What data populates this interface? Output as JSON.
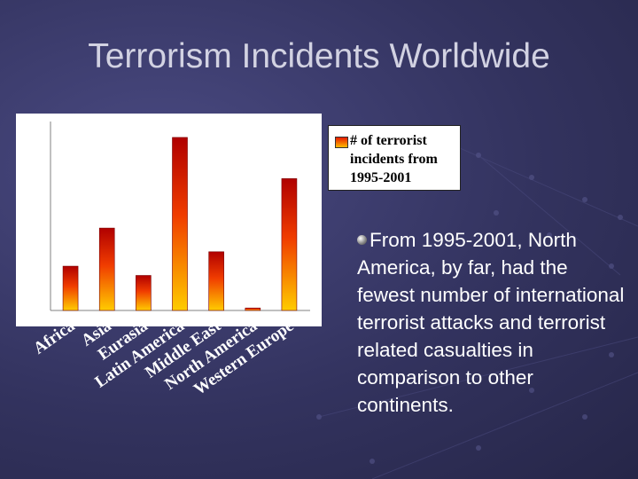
{
  "slide": {
    "title": "Terrorism Incidents Worldwide",
    "bullet_text": "From 1995-2001, North America, by far, had the fewest number of international terrorist attacks and terrorist related casualties in comparison to other continents."
  },
  "chart_data": {
    "type": "bar",
    "title": "",
    "xlabel": "",
    "ylabel": "",
    "ylim": [
      0,
      900
    ],
    "yticks": [
      0,
      100,
      200,
      300,
      400,
      500,
      600,
      700,
      800,
      900
    ],
    "categories": [
      "Africa",
      "Asia",
      "Eurasia",
      "Latin America",
      "Middle East",
      "North America",
      "Western Europe"
    ],
    "series": [
      {
        "name": "# of terrorist incidents from 1995-2001",
        "values": [
          215,
          400,
          170,
          840,
          285,
          12,
          640
        ]
      }
    ],
    "legend_position": "right",
    "grid": false,
    "colors": {
      "bar_top": "#c80000",
      "bar_bottom": "#ffbb00",
      "axis_text": "#ffffff"
    }
  }
}
